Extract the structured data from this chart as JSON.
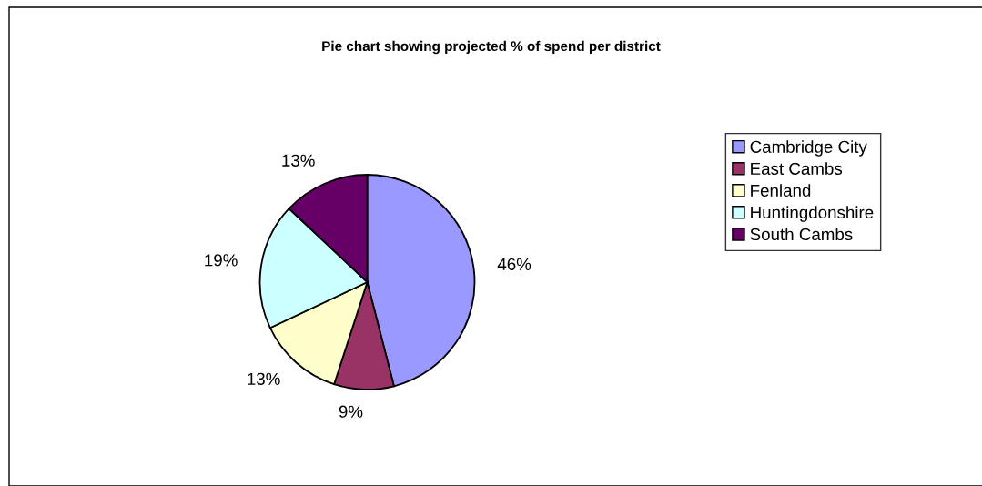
{
  "chart_data": {
    "type": "pie",
    "title": "Pie chart showing projected % of spend per district",
    "categories": [
      "Cambridge City",
      "East Cambs",
      "Fenland",
      "Huntingdonshire",
      "South Cambs"
    ],
    "values": [
      46,
      9,
      13,
      19,
      13
    ],
    "colors": [
      "#9999ff",
      "#993366",
      "#ffffcc",
      "#ccffff",
      "#660066"
    ],
    "value_labels": [
      "46%",
      "9%",
      "13%",
      "19%",
      "13%"
    ],
    "legend": "right"
  }
}
